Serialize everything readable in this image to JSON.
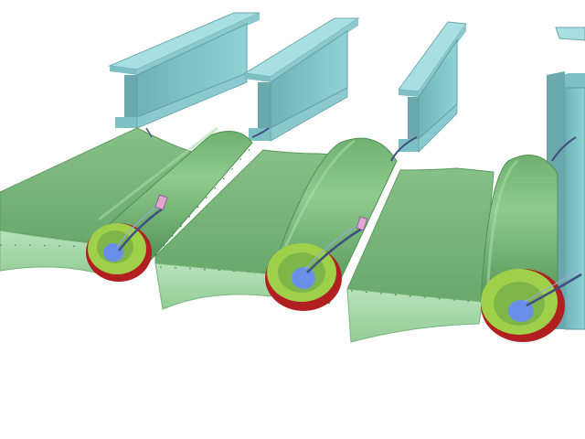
{
  "scene": {
    "subject": "",
    "colors": {
      "background": "#ffffff",
      "panel_top": "#8ec88e",
      "panel_mid": "#7ab97b",
      "panel_shadow": "#5e9a60",
      "panel_underside": "#a9d8ad",
      "beam_light": "#a6dde0",
      "beam_mid": "#7fc4c9",
      "beam_dark": "#5e9fa5",
      "roller_body": "#79ba79",
      "roller_ring_red": "#b11f21",
      "roller_ring_green": "#9fd04a",
      "hub_blue": "#6a8fe9",
      "cable": "#4a5a8a",
      "clip_pink": "#e3a6d0"
    },
    "beam_count": 4,
    "roller_count": 3
  }
}
